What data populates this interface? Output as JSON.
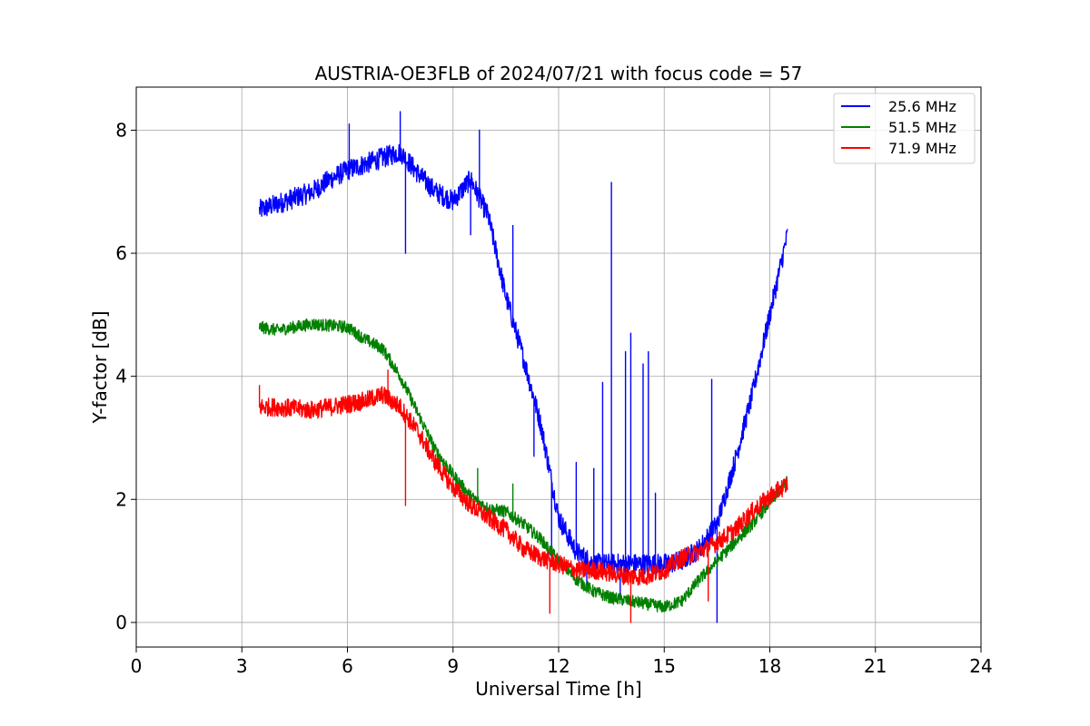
{
  "chart_data": {
    "type": "line",
    "title": "AUSTRIA-OE3FLB of 2024/07/21 with focus code = 57",
    "xlabel": "Universal Time [h]",
    "ylabel": "Y-factor [dB]",
    "xlim": [
      0,
      24
    ],
    "ylim": [
      -0.4,
      8.7
    ],
    "xticks": [
      0,
      3,
      6,
      9,
      12,
      15,
      18,
      21,
      24
    ],
    "yticks": [
      0,
      2,
      4,
      6,
      8
    ],
    "grid": true,
    "legend_position": "top-right",
    "series": [
      {
        "name": "25.6 MHz",
        "color": "#0000ff",
        "x": [
          3.5,
          4.0,
          4.5,
          5.0,
          5.5,
          6.0,
          6.5,
          7.0,
          7.5,
          8.0,
          8.5,
          9.0,
          9.5,
          9.75,
          10.0,
          10.5,
          11.0,
          11.5,
          12.0,
          12.5,
          13.0,
          13.5,
          14.0,
          14.5,
          15.0,
          15.5,
          16.0,
          16.5,
          17.0,
          17.5,
          18.0,
          18.5
        ],
        "y": [
          6.7,
          6.8,
          6.9,
          7.0,
          7.2,
          7.35,
          7.45,
          7.55,
          7.65,
          7.3,
          7.0,
          6.85,
          7.2,
          6.9,
          6.6,
          5.3,
          4.3,
          3.2,
          1.7,
          1.15,
          0.95,
          0.95,
          0.95,
          0.95,
          0.95,
          1.0,
          1.2,
          1.6,
          2.6,
          3.7,
          5.0,
          6.3
        ],
        "noise": 0.17,
        "spikes": [
          [
            6.05,
            8.1
          ],
          [
            7.5,
            8.3
          ],
          [
            7.65,
            6.0
          ],
          [
            9.5,
            6.3
          ],
          [
            9.75,
            8.0
          ],
          [
            10.7,
            6.45
          ],
          [
            11.3,
            2.7
          ],
          [
            11.8,
            1.0
          ],
          [
            12.5,
            2.6
          ],
          [
            12.8,
            0.6
          ],
          [
            13.0,
            2.5
          ],
          [
            13.25,
            3.9
          ],
          [
            13.5,
            7.15
          ],
          [
            13.75,
            0.4
          ],
          [
            13.9,
            4.4
          ],
          [
            14.05,
            4.7
          ],
          [
            14.2,
            1.0
          ],
          [
            14.4,
            4.2
          ],
          [
            14.55,
            4.4
          ],
          [
            14.75,
            2.1
          ],
          [
            16.35,
            3.95
          ],
          [
            16.5,
            0.0
          ]
        ]
      },
      {
        "name": "51.5 MHz",
        "color": "#008000",
        "x": [
          3.5,
          4.0,
          5.0,
          6.0,
          6.5,
          7.0,
          7.5,
          8.0,
          8.5,
          9.0,
          9.5,
          10.0,
          10.5,
          11.0,
          11.5,
          12.0,
          12.5,
          13.0,
          13.5,
          14.0,
          14.5,
          15.0,
          15.5,
          16.0,
          16.5,
          17.0,
          17.5,
          18.0,
          18.5
        ],
        "y": [
          4.8,
          4.75,
          4.85,
          4.8,
          4.6,
          4.45,
          4.0,
          3.4,
          2.8,
          2.4,
          2.05,
          1.85,
          1.8,
          1.6,
          1.35,
          1.0,
          0.7,
          0.5,
          0.4,
          0.35,
          0.3,
          0.25,
          0.35,
          0.7,
          1.0,
          1.3,
          1.6,
          1.95,
          2.3
        ],
        "noise": 0.1,
        "spikes": [
          [
            9.7,
            2.5
          ],
          [
            10.7,
            2.25
          ]
        ]
      },
      {
        "name": "71.9 MHz",
        "color": "#ff0000",
        "x": [
          3.5,
          4.0,
          5.0,
          6.0,
          6.5,
          7.0,
          7.5,
          8.0,
          8.5,
          9.0,
          9.5,
          10.0,
          10.5,
          11.0,
          11.5,
          12.0,
          12.5,
          13.0,
          13.5,
          14.0,
          14.5,
          15.0,
          15.5,
          16.0,
          16.5,
          17.0,
          17.5,
          18.0,
          18.5
        ],
        "y": [
          3.5,
          3.5,
          3.45,
          3.55,
          3.6,
          3.7,
          3.5,
          3.1,
          2.6,
          2.2,
          1.9,
          1.7,
          1.5,
          1.2,
          1.05,
          0.95,
          0.85,
          0.85,
          0.8,
          0.75,
          0.75,
          0.85,
          1.05,
          1.15,
          1.3,
          1.5,
          1.8,
          2.05,
          2.25
        ],
        "noise": 0.15,
        "spikes": [
          [
            3.5,
            3.85
          ],
          [
            7.15,
            4.1
          ],
          [
            7.65,
            1.9
          ],
          [
            11.75,
            0.15
          ],
          [
            14.05,
            0.0
          ],
          [
            16.25,
            0.35
          ]
        ]
      }
    ]
  }
}
